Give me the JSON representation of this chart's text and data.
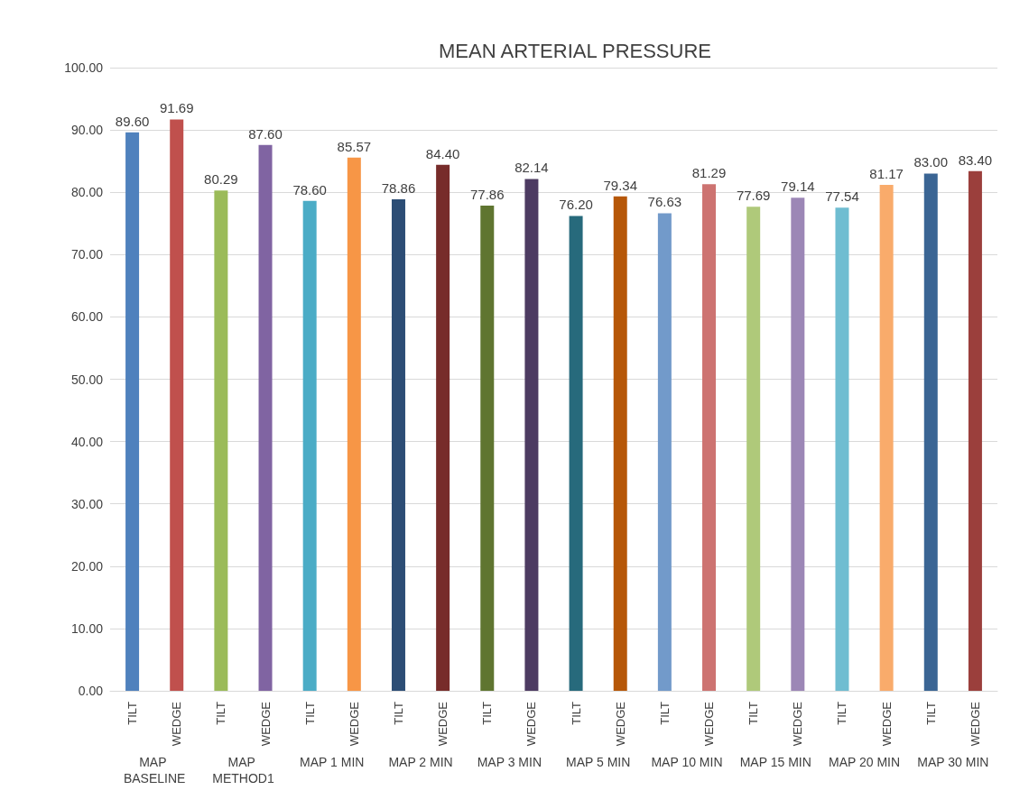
{
  "chart_data": {
    "type": "bar",
    "title": "MEAN ARTERIAL PRESSURE",
    "categories": [
      "TILT",
      "WEDGE",
      "TILT",
      "WEDGE",
      "TILT",
      "WEDGE",
      "TILT",
      "WEDGE",
      "TILT",
      "WEDGE",
      "TILT",
      "WEDGE",
      "TILT",
      "WEDGE",
      "TILT",
      "WEDGE",
      "TILT",
      "WEDGE",
      "TILT",
      "WEDGE"
    ],
    "values": [
      89.6,
      91.69,
      80.29,
      87.6,
      78.6,
      85.57,
      78.86,
      84.4,
      77.86,
      82.14,
      76.2,
      79.34,
      76.63,
      81.29,
      77.69,
      79.14,
      77.54,
      81.17,
      83.0,
      83.4
    ],
    "value_labels": [
      "89.60",
      "91.69",
      "80.29",
      "87.60",
      "78.60",
      "85.57",
      "78.86",
      "84.40",
      "77.86",
      "82.14",
      "76.20",
      "79.34",
      "76.63",
      "81.29",
      "77.69",
      "79.14",
      "77.54",
      "81.17",
      "83.00",
      "83.40"
    ],
    "colors": [
      "#4f81bd",
      "#c0504d",
      "#9bbb59",
      "#8064a2",
      "#4bacc6",
      "#f79646",
      "#2c4d75",
      "#772c2a",
      "#5f7530",
      "#4d3b62",
      "#276a7c",
      "#b65708",
      "#729aca",
      "#cd7371",
      "#afc97a",
      "#9c87b6",
      "#6fbdd1",
      "#f9ab6b",
      "#3a6594",
      "#9b3f3c"
    ],
    "annotations": [
      "MAP BASELINE",
      "MAP METHOD1",
      "MAP 1 MIN",
      "MAP 2 MIN",
      "MAP 3 MIN",
      "MAP 5 MIN",
      "MAP 10 MIN",
      "MAP 15 MIN",
      "MAP 20 MIN",
      "MAP 30 MIN"
    ],
    "ylim": [
      0,
      100
    ],
    "yticks": [
      {
        "value": 0,
        "label": "0.00"
      },
      {
        "value": 10,
        "label": "10.00"
      },
      {
        "value": 20,
        "label": "20.00"
      },
      {
        "value": 30,
        "label": "30.00"
      },
      {
        "value": 40,
        "label": "40.00"
      },
      {
        "value": 50,
        "label": "50.00"
      },
      {
        "value": 60,
        "label": "60.00"
      },
      {
        "value": 70,
        "label": "70.00"
      },
      {
        "value": 80,
        "label": "80.00"
      },
      {
        "value": 90,
        "label": "90.00"
      },
      {
        "value": 100,
        "label": "100.00"
      }
    ],
    "grid": "y"
  }
}
